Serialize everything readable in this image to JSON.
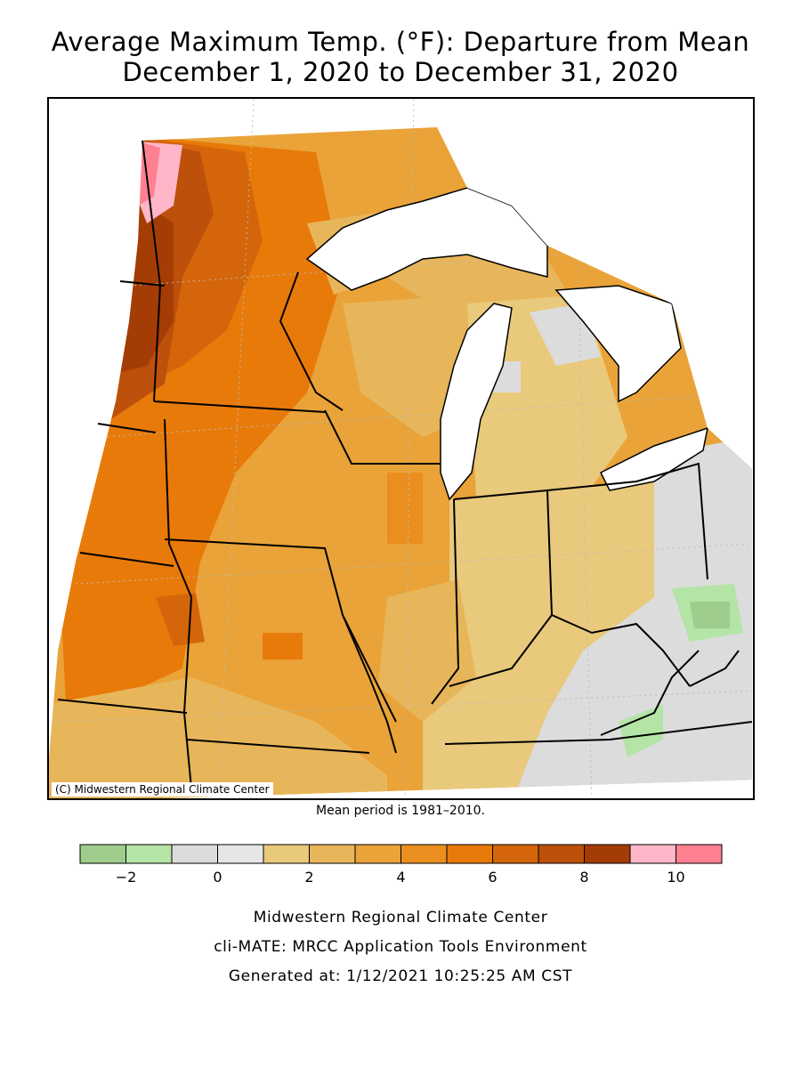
{
  "title": {
    "line1": "Average Maximum Temp. (°F): Departure from Mean",
    "line2": "December 1, 2020 to December 31, 2020"
  },
  "map": {
    "copyright": "(C) Midwestern Regional Climate Center",
    "region": "Upper Midwest / Great Lakes states"
  },
  "mean_period": "Mean period is 1981–2010.",
  "legend": {
    "colors": [
      "#9fce8c",
      "#b4e4a6",
      "#dcdcdc",
      "#e6e6e6",
      "#e9c97b",
      "#e8b65a",
      "#e9a338",
      "#ea8f1f",
      "#e87a0a",
      "#d4650a",
      "#bd500a",
      "#a43c05",
      "#ffb6c8",
      "#ff8090"
    ],
    "tick_labels": [
      "−2",
      "0",
      "2",
      "4",
      "6",
      "8",
      "10"
    ],
    "tick_values": [
      -2,
      0,
      2,
      4,
      6,
      8,
      10
    ],
    "range": [
      -3,
      11
    ],
    "units": "°F"
  },
  "footer": {
    "line1": "Midwestern Regional Climate Center",
    "line2": "cli-MATE: MRCC Application Tools Environment",
    "line3": "Generated at: 1/12/2021 10:25:25 AM CST"
  }
}
